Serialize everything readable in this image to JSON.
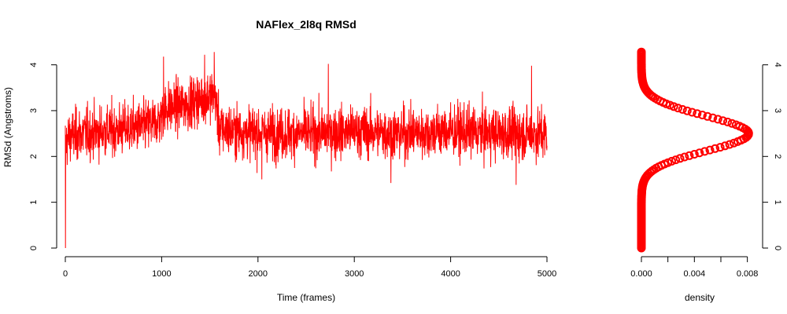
{
  "chart_data": [
    {
      "type": "line",
      "title": "NAFlex_2l8q RMSd",
      "xlabel": "Time (frames)",
      "ylabel": "RMSd (Angstroms)",
      "xlim": [
        0,
        5000
      ],
      "ylim": [
        0,
        4.25
      ],
      "x_ticks": [
        0,
        1000,
        2000,
        3000,
        4000,
        5000
      ],
      "y_ticks": [
        0,
        1,
        2,
        3,
        4
      ],
      "x_tick_labels": [
        "0",
        "1000",
        "2000",
        "3000",
        "4000",
        "5000"
      ],
      "y_tick_labels": [
        "0",
        "1",
        "2",
        "3",
        "4"
      ],
      "series": [
        {
          "color": "#ff0000",
          "n_frames": 5000,
          "profile_x": [
            0,
            50,
            200,
            400,
            600,
            800,
            950,
            1050,
            1200,
            1350,
            1450,
            1550,
            1600,
            1800,
            2200,
            2600,
            3000,
            3500,
            4000,
            4500,
            5000
          ],
          "profile_y": [
            2.3,
            2.45,
            2.5,
            2.55,
            2.6,
            2.65,
            2.75,
            3.05,
            3.1,
            3.2,
            3.3,
            3.35,
            2.6,
            2.55,
            2.5,
            2.5,
            2.55,
            2.5,
            2.55,
            2.5,
            2.5
          ],
          "spikes": [
            {
              "x": 1,
              "y": 0.0
            },
            {
              "x": 1020,
              "y": 4.18
            },
            {
              "x": 1445,
              "y": 4.22
            },
            {
              "x": 1545,
              "y": 4.28
            },
            {
              "x": 2730,
              "y": 4.02
            },
            {
              "x": 3380,
              "y": 1.42
            },
            {
              "x": 4680,
              "y": 1.38
            },
            {
              "x": 2040,
              "y": 1.5
            },
            {
              "x": 4840,
              "y": 3.98
            }
          ]
        }
      ],
      "grid": false,
      "legend": "none"
    },
    {
      "type": "line",
      "title": "",
      "xlabel": "density",
      "ylabel": "",
      "xlim": [
        0,
        0.0082
      ],
      "ylim": [
        0,
        4.25
      ],
      "x_ticks": [
        0.0,
        0.004,
        0.008
      ],
      "x_minor_ticks": [
        0.002,
        0.006
      ],
      "x_tick_labels": [
        "0.000",
        "0.004",
        "0.008"
      ],
      "y_ticks": [
        0,
        1,
        2,
        3,
        4
      ],
      "y_tick_labels": [
        "0",
        "1",
        "2",
        "3",
        "4"
      ],
      "y_axis_side": "right",
      "series": [
        {
          "color": "#ff0000",
          "marker": "circle",
          "distribution": "gaussian",
          "peak_density": 0.0081,
          "peak_y": 2.5,
          "sd": 0.38,
          "y_range": [
            0.0,
            4.28
          ]
        }
      ],
      "grid": false,
      "legend": "none"
    }
  ]
}
